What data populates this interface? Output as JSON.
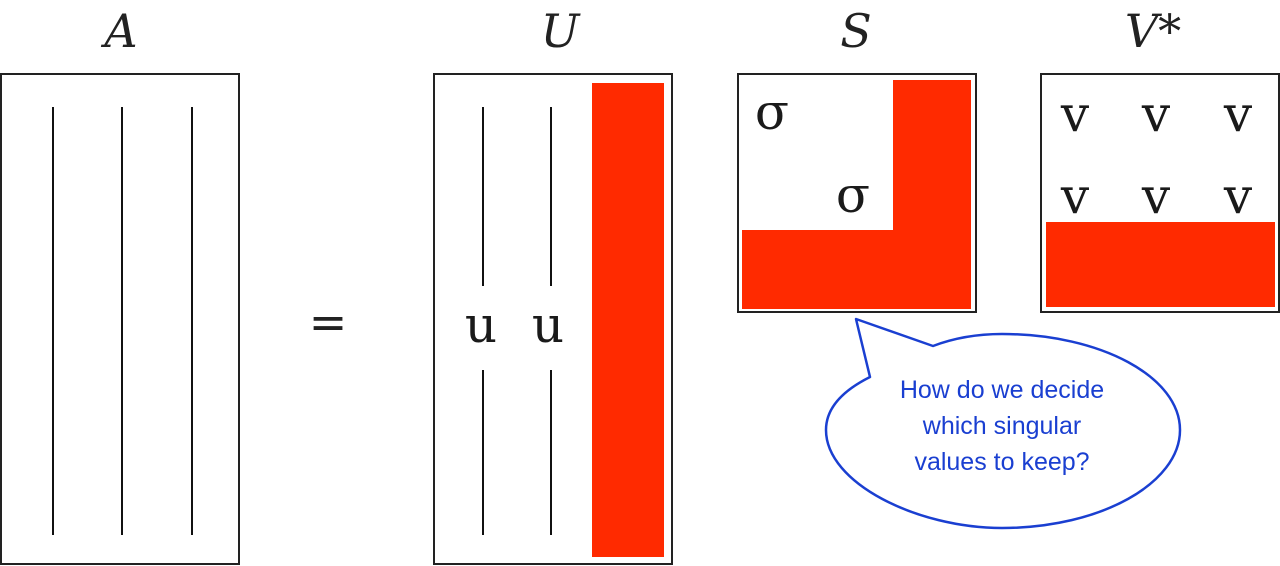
{
  "labels": {
    "a": "A",
    "u": "U",
    "s": "S",
    "v": "V*",
    "equals": "="
  },
  "symbols": {
    "u": "u",
    "sigma": "σ",
    "v": "v"
  },
  "bubble": {
    "lines": [
      "How do we decide",
      "which singular",
      "values to keep?"
    ]
  },
  "colors": {
    "highlight": "#ff2a00",
    "frame": "#222222",
    "bubble": "#1a3fd1"
  }
}
